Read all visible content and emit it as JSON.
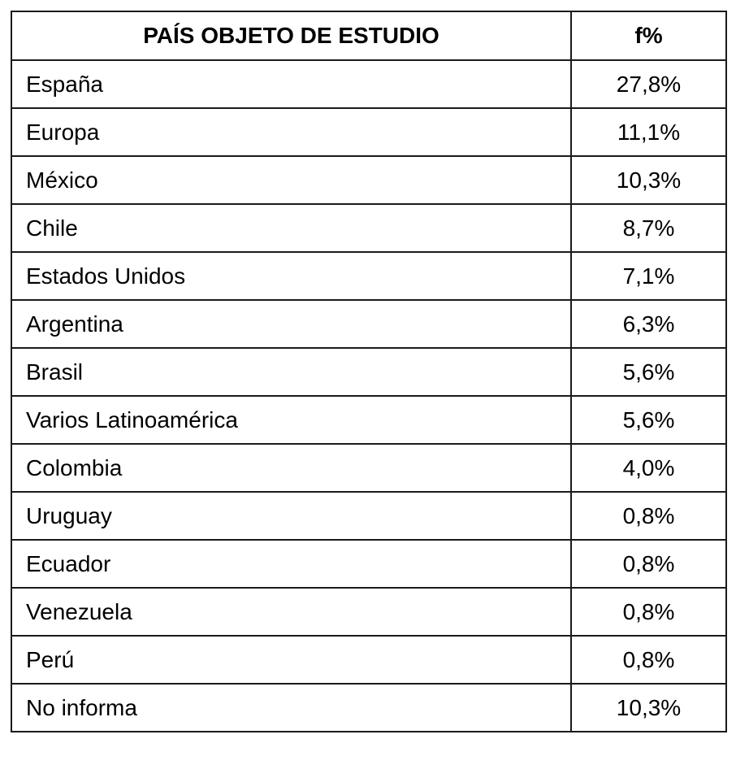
{
  "table": {
    "headers": {
      "country": "PAÍS OBJETO DE ESTUDIO",
      "pct": "f%"
    },
    "rows": [
      {
        "country": "España",
        "pct": "27,8%"
      },
      {
        "country": "Europa",
        "pct": "11,1%"
      },
      {
        "country": "México",
        "pct": "10,3%"
      },
      {
        "country": "Chile",
        "pct": "8,7%"
      },
      {
        "country": "Estados Unidos",
        "pct": "7,1%"
      },
      {
        "country": "Argentina",
        "pct": "6,3%"
      },
      {
        "country": "Brasil",
        "pct": "5,6%"
      },
      {
        "country": "Varios Latinoamérica",
        "pct": "5,6%"
      },
      {
        "country": "Colombia",
        "pct": "4,0%"
      },
      {
        "country": "Uruguay",
        "pct": "0,8%"
      },
      {
        "country": "Ecuador",
        "pct": "0,8%"
      },
      {
        "country": "Venezuela",
        "pct": "0,8%"
      },
      {
        "country": "Perú",
        "pct": "0,8%"
      },
      {
        "country": "No informa",
        "pct": "10,3%"
      }
    ]
  }
}
